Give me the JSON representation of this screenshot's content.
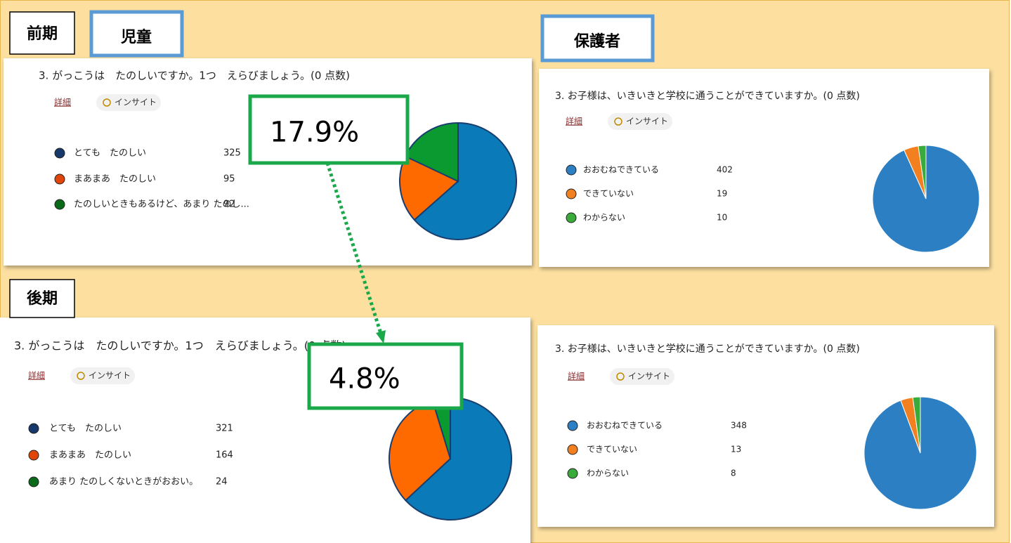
{
  "labels": {
    "first_half": "前期",
    "second_half": "後期",
    "children": "児童",
    "guardians": "保護者"
  },
  "annotations": [
    "17.9%",
    "4.8%"
  ],
  "chart_data": [
    {
      "type": "pie",
      "title": "3. がっこうは　たのしいですか。1つ　えらびましょう。(0 点数)",
      "buttons": [
        "詳細",
        "インサイト"
      ],
      "categories": [
        "とても　たのしい",
        "まあまあ　たのしい",
        "たのしいときもあるけど、あまり たのし..."
      ],
      "values": [
        325,
        95,
        92
      ],
      "colors": [
        "#0a7ab8",
        "#ff6a00",
        "#0a9a30"
      ],
      "legend_colors": [
        "#16386b",
        "#e0460a",
        "#0a6a1a"
      ]
    },
    {
      "type": "pie",
      "title": "3. お子様は、いきいきと学校に通うことができていますか。(0 点数)",
      "buttons": [
        "詳細",
        "インサイト"
      ],
      "categories": [
        "おおむねできている",
        "できていない",
        "わからない"
      ],
      "values": [
        402,
        19,
        10
      ],
      "colors": [
        "#2b7fc2",
        "#f28020",
        "#3aaa3a"
      ],
      "legend_colors": [
        "#2b7fc2",
        "#f28020",
        "#3aaa3a"
      ]
    },
    {
      "type": "pie",
      "title": "3. がっこうは　たのしいですか。1つ　えらびましょう。(0 点数)",
      "buttons": [
        "詳細",
        "インサイト"
      ],
      "categories": [
        "とても　たのしい",
        "まあまあ　たのしい",
        "あまり たのしくないときがおおい。"
      ],
      "values": [
        321,
        164,
        24
      ],
      "colors": [
        "#0a7ab8",
        "#ff6a00",
        "#0a9a30"
      ],
      "legend_colors": [
        "#16386b",
        "#e0460a",
        "#0a6a1a"
      ]
    },
    {
      "type": "pie",
      "title": "3. お子様は、いきいきと学校に通うことができていますか。(0 点数)",
      "buttons": [
        "詳細",
        "インサイト"
      ],
      "categories": [
        "おおむねできている",
        "できていない",
        "わからない"
      ],
      "values": [
        348,
        13,
        8
      ],
      "colors": [
        "#2b7fc2",
        "#f28020",
        "#3aaa3a"
      ],
      "legend_colors": [
        "#2b7fc2",
        "#f28020",
        "#3aaa3a"
      ]
    }
  ]
}
